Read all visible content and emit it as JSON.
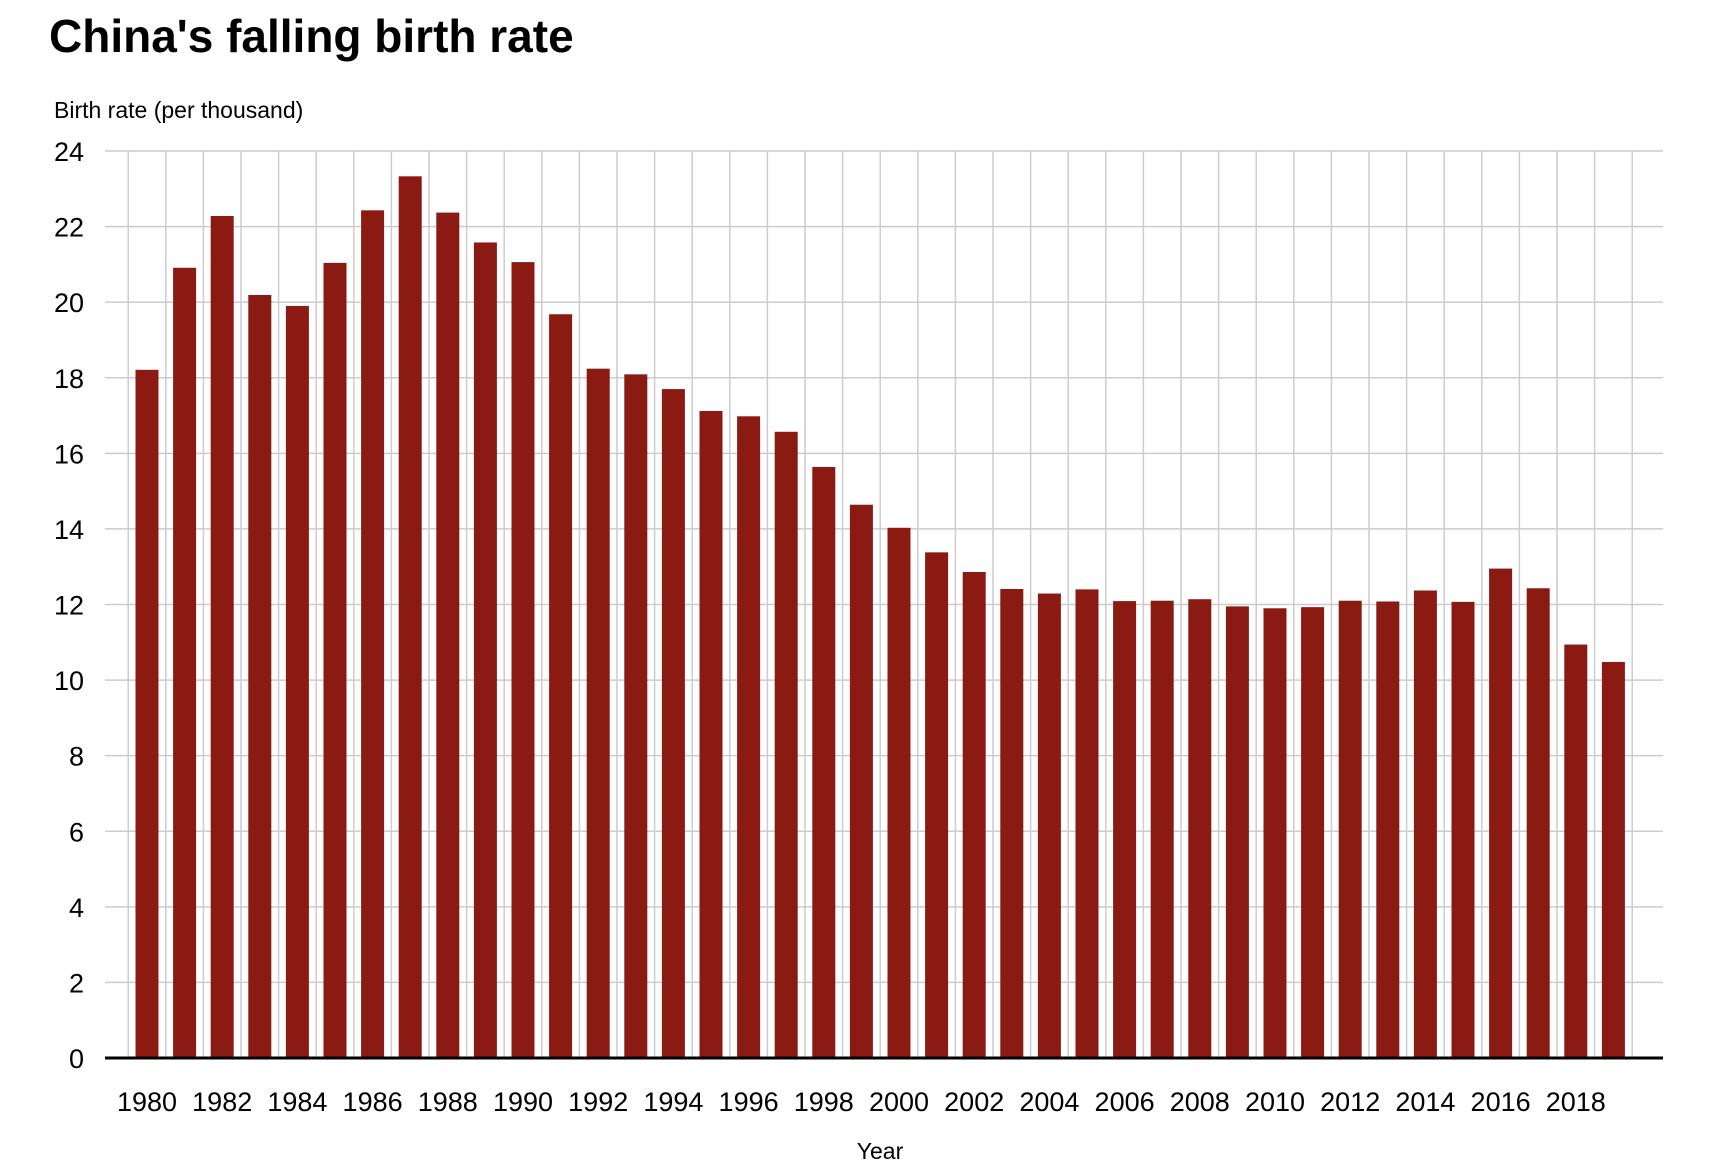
{
  "chart_data": {
    "type": "bar",
    "title": "China's falling birth rate",
    "xlabel": "Year",
    "ylabel": "Birth rate (per thousand)",
    "ylim": [
      0,
      24
    ],
    "yticks": [
      0,
      2,
      4,
      6,
      8,
      10,
      12,
      14,
      16,
      18,
      20,
      22,
      24
    ],
    "grid": true,
    "bar_color": "#8b1a12",
    "categories": [
      "1980",
      "1981",
      "1982",
      "1983",
      "1984",
      "1985",
      "1986",
      "1987",
      "1988",
      "1989",
      "1990",
      "1991",
      "1992",
      "1993",
      "1994",
      "1995",
      "1996",
      "1997",
      "1998",
      "1999",
      "2000",
      "2001",
      "2002",
      "2003",
      "2004",
      "2005",
      "2006",
      "2007",
      "2008",
      "2009",
      "2010",
      "2011",
      "2012",
      "2013",
      "2014",
      "2015",
      "2016",
      "2017",
      "2018",
      "2019"
    ],
    "xtick_labels": [
      "1980",
      "1982",
      "1984",
      "1986",
      "1988",
      "1990",
      "1992",
      "1994",
      "1996",
      "1998",
      "2000",
      "2002",
      "2004",
      "2006",
      "2008",
      "2010",
      "2012",
      "2014",
      "2016",
      "2018"
    ],
    "values": [
      18.21,
      20.91,
      22.28,
      20.19,
      19.9,
      21.04,
      22.43,
      23.33,
      22.37,
      21.58,
      21.06,
      19.68,
      18.24,
      18.09,
      17.7,
      17.12,
      16.98,
      16.57,
      15.64,
      14.64,
      14.03,
      13.38,
      12.86,
      12.41,
      12.29,
      12.4,
      12.09,
      12.1,
      12.14,
      11.95,
      11.9,
      11.93,
      12.1,
      12.08,
      12.37,
      12.07,
      12.95,
      12.43,
      10.94,
      10.48
    ]
  }
}
